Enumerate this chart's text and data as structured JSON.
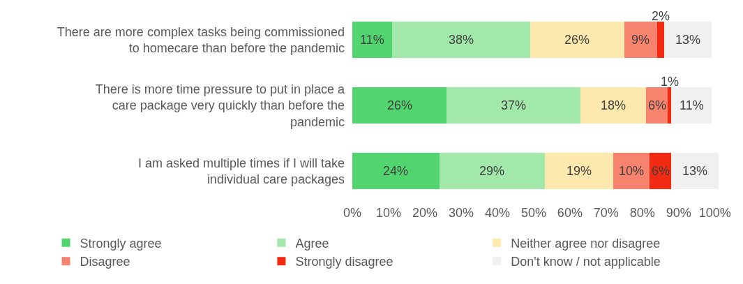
{
  "chart_data": {
    "type": "bar",
    "orientation": "horizontal",
    "stacked": true,
    "legend": "bottom",
    "grid": false,
    "categories": [
      "There are more complex tasks being commissioned to homecare than before the pandemic",
      "There is more time pressure to put in place a care package very quickly than before the pandemic",
      "I am asked multiple times if I will take individual care packages"
    ],
    "xlim": [
      0,
      101
    ],
    "xticks": [
      {
        "value": 0,
        "label": "0%"
      },
      {
        "value": 10,
        "label": "10%"
      },
      {
        "value": 20,
        "label": "20%"
      },
      {
        "value": 30,
        "label": "30%"
      },
      {
        "value": 40,
        "label": "40%"
      },
      {
        "value": 50,
        "label": "50%"
      },
      {
        "value": 60,
        "label": "60%"
      },
      {
        "value": 70,
        "label": "70%"
      },
      {
        "value": 80,
        "label": "80%"
      },
      {
        "value": 90,
        "label": "90%"
      },
      {
        "value": 100,
        "label": "100%"
      }
    ],
    "series": [
      {
        "name": "Strongly agree",
        "color": "#52d46e",
        "values": [
          11,
          26,
          24
        ],
        "value_labels": [
          "11%",
          "26%",
          "24%"
        ]
      },
      {
        "name": "Agree",
        "color": "#a1e8aa",
        "values": [
          38,
          37,
          29
        ],
        "value_labels": [
          "38%",
          "37%",
          "29%"
        ]
      },
      {
        "name": "Neither agree nor disagree",
        "color": "#fde9ad",
        "values": [
          26,
          18,
          19
        ],
        "value_labels": [
          "26%",
          "18%",
          "19%"
        ]
      },
      {
        "name": "Disagree",
        "color": "#f7836f",
        "values": [
          9,
          6,
          10
        ],
        "value_labels": [
          "9%",
          "6%",
          "10%"
        ]
      },
      {
        "name": "Strongly disagree",
        "color": "#f22a12",
        "values": [
          2,
          1,
          6
        ],
        "value_labels": [
          "2%",
          "1%",
          "6%"
        ]
      },
      {
        "name": "Don't know / not applicable",
        "color": "#f0f0f0",
        "values": [
          13,
          11,
          13
        ],
        "value_labels": [
          "13%",
          "11%",
          "13%"
        ]
      }
    ]
  }
}
